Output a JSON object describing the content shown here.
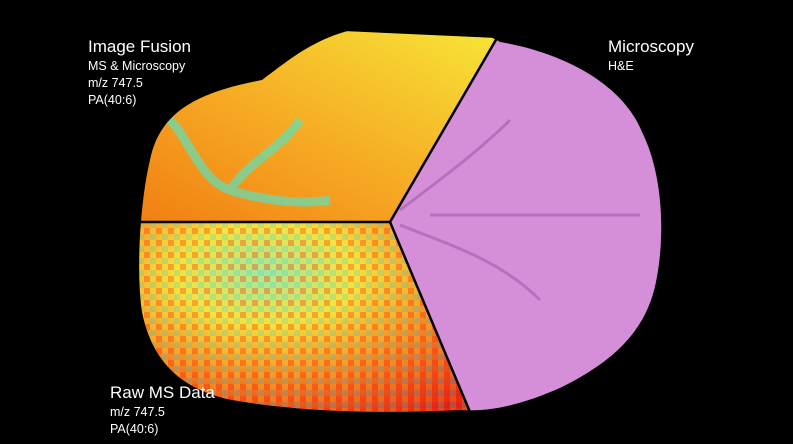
{
  "fusion": {
    "title": "Image Fusion",
    "lines": [
      "MS & Microscopy",
      "m/z 747.5",
      "PA(40:6)"
    ]
  },
  "microscopy": {
    "title": "Microscopy",
    "lines": [
      "H&E"
    ]
  },
  "raw": {
    "title": "Raw MS Data",
    "lines": [
      "m/z 747.5",
      "PA(40:6)"
    ]
  }
}
